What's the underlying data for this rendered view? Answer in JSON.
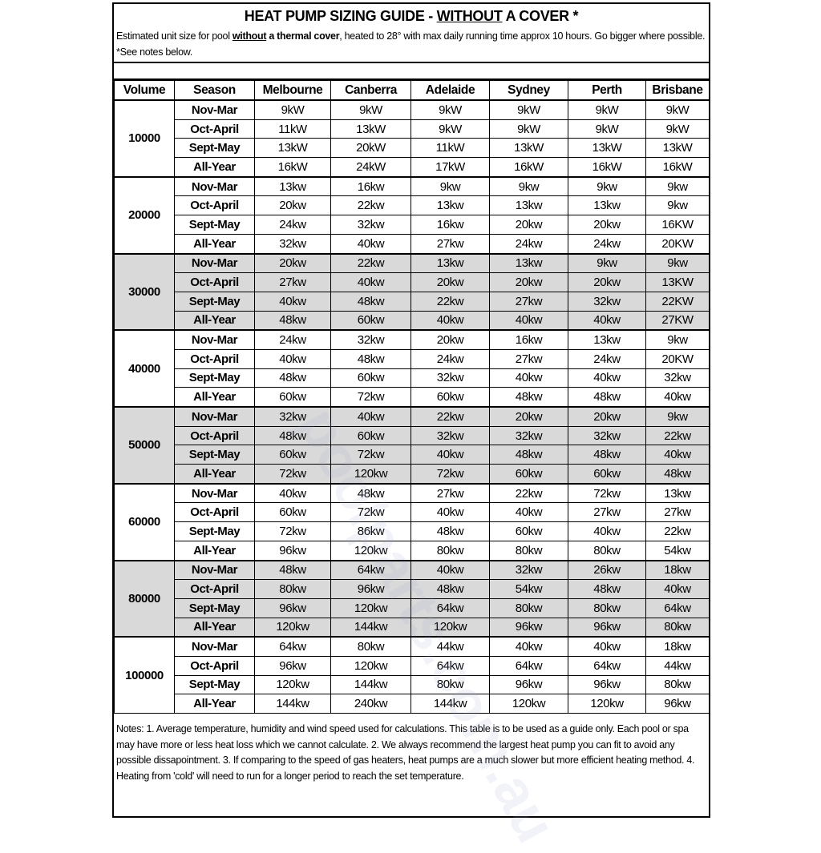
{
  "title": {
    "prefix": "HEAT PUMP SIZING GUIDE - ",
    "underlined": "WITHOUT",
    "suffix": " A COVER *"
  },
  "subtitle": {
    "p1": "Estimated unit size for pool ",
    "u": "without",
    "b": " a thermal cover",
    "p2": ", heated to 28° with max daily running time approx 10 hours. Go bigger where possible. *See notes below."
  },
  "watermark": "poolparts.com.au",
  "headers": [
    "Volume",
    "Season",
    "Melbourne",
    "Canberra",
    "Adelaide",
    "Sydney",
    "Perth",
    "Brisbane"
  ],
  "groups": [
    {
      "volume": "10000",
      "shaded": false,
      "rows": [
        [
          "Nov-Mar",
          "9kW",
          "9kW",
          "9kW",
          "9kW",
          "9kW",
          "9kW"
        ],
        [
          "Oct-April",
          "11kW",
          "13kW",
          "9kW",
          "9kW",
          "9kW",
          "9kW"
        ],
        [
          "Sept-May",
          "13kW",
          "20kW",
          "11kW",
          "13kW",
          "13kW",
          "13kW"
        ],
        [
          "All-Year",
          "16kW",
          "24kW",
          "17kW",
          "16kW",
          "16kW",
          "16kW"
        ]
      ]
    },
    {
      "volume": "20000",
      "shaded": false,
      "rows": [
        [
          "Nov-Mar",
          "13kw",
          "16kw",
          "9kw",
          "9kw",
          "9kw",
          "9kw"
        ],
        [
          "Oct-April",
          "20kw",
          "22kw",
          "13kw",
          "13kw",
          "13kw",
          "9kw"
        ],
        [
          "Sept-May",
          "24kw",
          "32kw",
          "16kw",
          "20kw",
          "20kw",
          "16KW"
        ],
        [
          "All-Year",
          "32kw",
          "40kw",
          "27kw",
          "24kw",
          "24kw",
          "20KW"
        ]
      ]
    },
    {
      "volume": "30000",
      "shaded": true,
      "rows": [
        [
          "Nov-Mar",
          "20kw",
          "22kw",
          "13kw",
          "13kw",
          "9kw",
          "9kw"
        ],
        [
          "Oct-April",
          "27kw",
          "40kw",
          "20kw",
          "20kw",
          "20kw",
          "13KW"
        ],
        [
          "Sept-May",
          "40kw",
          "48kw",
          "22kw",
          "27kw",
          "32kw",
          "22KW"
        ],
        [
          "All-Year",
          "48kw",
          "60kw",
          "40kw",
          "40kw",
          "40kw",
          "27KW"
        ]
      ]
    },
    {
      "volume": "40000",
      "shaded": false,
      "rows": [
        [
          "Nov-Mar",
          "24kw",
          "32kw",
          "20kw",
          "16kw",
          "13kw",
          "9kw"
        ],
        [
          "Oct-April",
          "40kw",
          "48kw",
          "24kw",
          "27kw",
          "24kw",
          "20KW"
        ],
        [
          "Sept-May",
          "48kw",
          "60kw",
          "32kw",
          "40kw",
          "40kw",
          "32kw"
        ],
        [
          "All-Year",
          "60kw",
          "72kw",
          "60kw",
          "48kw",
          "48kw",
          "40kw"
        ]
      ]
    },
    {
      "volume": "50000",
      "shaded": true,
      "rows": [
        [
          "Nov-Mar",
          "32kw",
          "40kw",
          "22kw",
          "20kw",
          "20kw",
          "9kw"
        ],
        [
          "Oct-April",
          "48kw",
          "60kw",
          "32kw",
          "32kw",
          "32kw",
          "22kw"
        ],
        [
          "Sept-May",
          "60kw",
          "72kw",
          "40kw",
          "48kw",
          "48kw",
          "40kw"
        ],
        [
          "All-Year",
          "72kw",
          "120kw",
          "72kw",
          "60kw",
          "60kw",
          "48kw"
        ]
      ]
    },
    {
      "volume": "60000",
      "shaded": false,
      "rows": [
        [
          "Nov-Mar",
          "40kw",
          "48kw",
          "27kw",
          "22kw",
          "72kw",
          "13kw"
        ],
        [
          "Oct-April",
          "60kw",
          "72kw",
          "40kw",
          "40kw",
          "27kw",
          "27kw"
        ],
        [
          "Sept-May",
          "72kw",
          "86kw",
          "48kw",
          "60kw",
          "40kw",
          "22kw"
        ],
        [
          "All-Year",
          "96kw",
          "120kw",
          "80kw",
          "80kw",
          "80kw",
          "54kw"
        ]
      ]
    },
    {
      "volume": "80000",
      "shaded": true,
      "rows": [
        [
          "Nov-Mar",
          "48kw",
          "64kw",
          "40kw",
          "32kw",
          "26kw",
          "18kw"
        ],
        [
          "Oct-April",
          "80kw",
          "96kw",
          "48kw",
          "54kw",
          "48kw",
          "40kw"
        ],
        [
          "Sept-May",
          "96kw",
          "120kw",
          "64kw",
          "80kw",
          "80kw",
          "64kw"
        ],
        [
          "All-Year",
          "120kw",
          "144kw",
          "120kw",
          "96kw",
          "96kw",
          "80kw"
        ]
      ]
    },
    {
      "volume": "100000",
      "shaded": false,
      "rows": [
        [
          "Nov-Mar",
          "64kw",
          "80kw",
          "44kw",
          "40kw",
          "40kw",
          "18kw"
        ],
        [
          "Oct-April",
          "96kw",
          "120kw",
          "64kw",
          "64kw",
          "64kw",
          "44kw"
        ],
        [
          "Sept-May",
          "120kw",
          "144kw",
          "80kw",
          "96kw",
          "96kw",
          "80kw"
        ],
        [
          "All-Year",
          "144kw",
          "240kw",
          "144kw",
          "120kw",
          "120kw",
          "96kw"
        ]
      ]
    }
  ],
  "notes": "Notes: 1. Average temperature, humidity and wind speed used for calculations. This table is to be used as a guide only. Each pool or spa may have more or less heat loss which we cannot calculate. 2. We always recommend the largest heat pump you can fit to avoid any possible dissapointment. 3. If comparing to the speed of gas heaters, heat pumps are a much slower but more efficient heating method. 4. Heating from 'cold' will need to run for a longer period to reach the set temperature."
}
